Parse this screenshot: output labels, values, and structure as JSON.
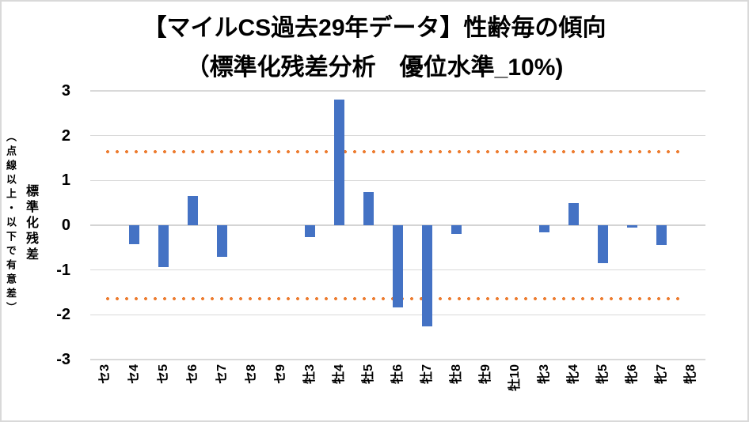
{
  "title": "【マイルCS過去29年データ】性齢毎の傾向",
  "subtitle": "（標準化残差分析　優位水準_10%)",
  "y_axis": {
    "main": "標準化残差",
    "sub": "（点線以上・以下で有意差）"
  },
  "chart_data": {
    "type": "bar",
    "title": "【マイルCS過去29年データ】性齢毎の傾向（標準化残差分析 優位水準_10%)",
    "categories": [
      "セ3",
      "セ4",
      "セ5",
      "セ6",
      "セ7",
      "セ8",
      "セ9",
      "牡3",
      "牡4",
      "牡5",
      "牡6",
      "牡7",
      "牡8",
      "牡9",
      "牡10",
      "牝3",
      "牝4",
      "牝5",
      "牝6",
      "牝7",
      "牝8"
    ],
    "values": [
      0,
      -0.43,
      -0.94,
      0.66,
      -0.71,
      0,
      0,
      -0.26,
      2.8,
      0.75,
      -1.84,
      -2.25,
      -0.2,
      0,
      0,
      -0.16,
      0.5,
      -0.84,
      -0.05,
      -0.44,
      0
    ],
    "xlabel": "",
    "ylabel": "標準化残差（点線以上・以下で有意差）",
    "ylim": [
      -3,
      3
    ],
    "yticks": [
      3,
      2,
      1,
      0,
      -1,
      -2,
      -3
    ],
    "significance_lines": [
      1.645,
      -1.645
    ],
    "grid": true,
    "legend_position": "none",
    "x_tick_rotation": -90,
    "colors": {
      "bar": "#4472C4",
      "significance": "#ED7D31",
      "gridline": "#D9D9D9",
      "text": "#000000"
    }
  }
}
